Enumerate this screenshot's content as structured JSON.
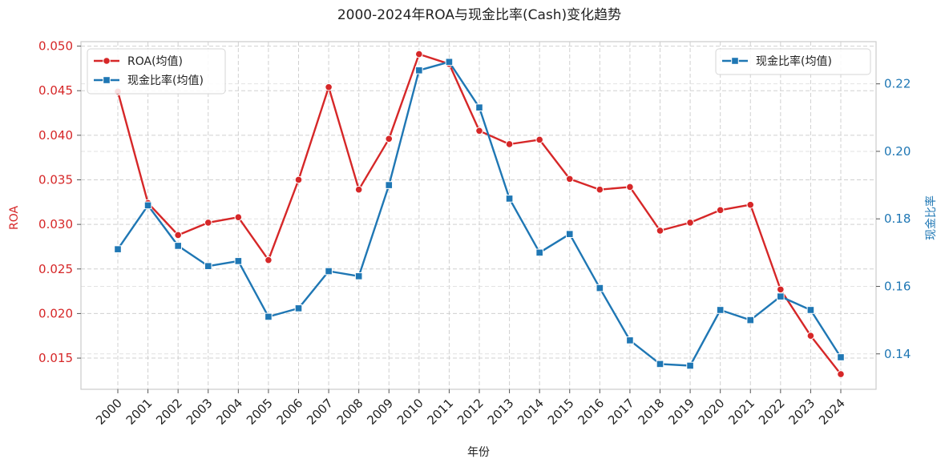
{
  "chart_data": {
    "type": "line",
    "title": "2000-2024年ROA与现金比率(Cash)变化趋势",
    "xlabel": "年份",
    "ylabel_left": "ROA",
    "ylabel_right": "现金比率",
    "categories": [
      "2000",
      "2001",
      "2002",
      "2003",
      "2004",
      "2005",
      "2006",
      "2007",
      "2008",
      "2009",
      "2010",
      "2011",
      "2012",
      "2013",
      "2014",
      "2015",
      "2016",
      "2017",
      "2018",
      "2019",
      "2020",
      "2021",
      "2022",
      "2023",
      "2024"
    ],
    "y_left_ticks": [
      "0.015",
      "0.020",
      "0.025",
      "0.030",
      "0.035",
      "0.040",
      "0.045",
      "0.050"
    ],
    "y_right_ticks": [
      "0.14",
      "0.16",
      "0.18",
      "0.20",
      "0.22"
    ],
    "ylim_left": [
      0.0115,
      0.0505
    ],
    "ylim_right": [
      0.1295,
      0.2325
    ],
    "grid": true,
    "series": [
      {
        "name": "ROA(均值)",
        "axis": "left",
        "color": "#d62728",
        "marker": "circle",
        "values": [
          0.0449,
          0.0324,
          0.0288,
          0.0302,
          0.0308,
          0.026,
          0.035,
          0.0454,
          0.0339,
          0.0396,
          0.0491,
          0.048,
          0.0405,
          0.039,
          0.0395,
          0.0351,
          0.0339,
          0.0342,
          0.0293,
          0.0302,
          0.0316,
          0.0322,
          0.0227,
          0.0175,
          0.0132
        ]
      },
      {
        "name": "现金比率(均值)",
        "axis": "right",
        "color": "#1f77b4",
        "marker": "square",
        "values": [
          0.171,
          0.184,
          0.172,
          0.166,
          0.1675,
          0.151,
          0.1535,
          0.1645,
          0.163,
          0.19,
          0.224,
          0.2265,
          0.213,
          0.186,
          0.17,
          0.1755,
          0.1595,
          0.144,
          0.137,
          0.1365,
          0.153,
          0.15,
          0.157,
          0.153,
          0.139
        ]
      }
    ],
    "legends": [
      {
        "placement": "top-left",
        "entries": [
          "ROA(均值)",
          "现金比率(均值)"
        ]
      },
      {
        "placement": "top-right",
        "entries": [
          "现金比率(均值)"
        ]
      }
    ]
  }
}
